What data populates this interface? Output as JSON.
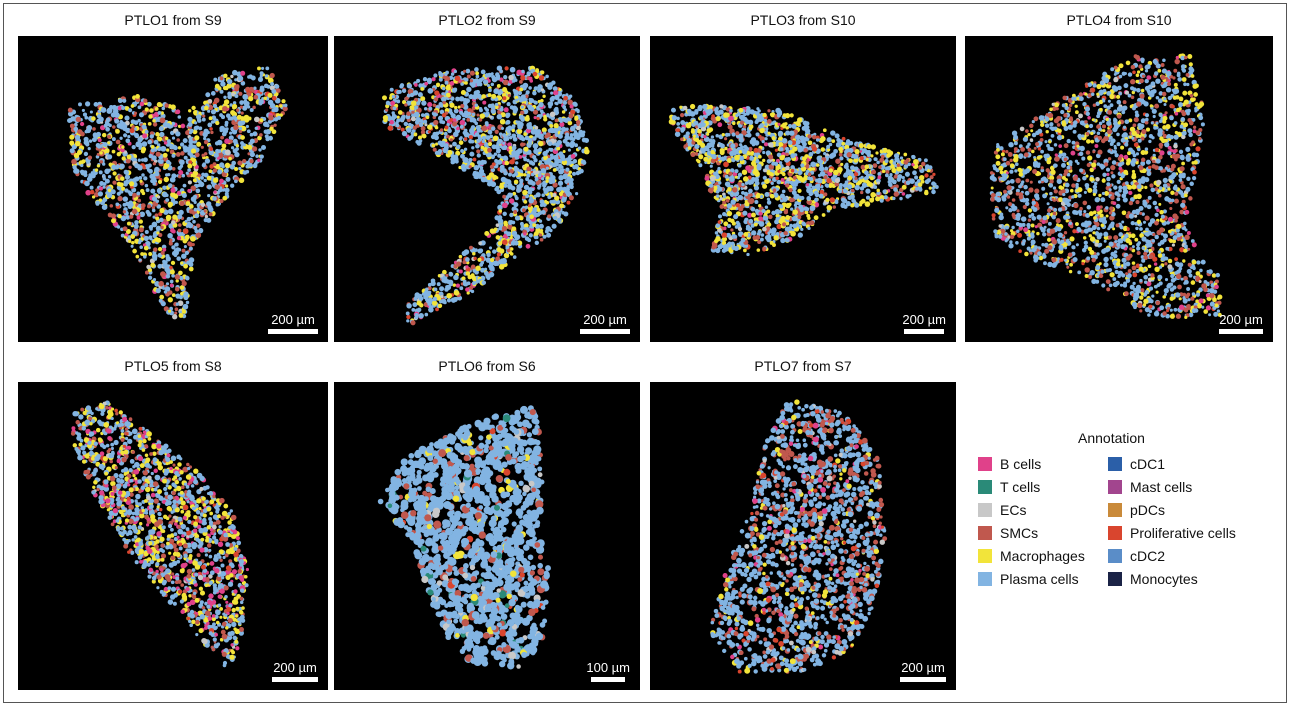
{
  "panels": [
    {
      "id": "ptlo1",
      "title": "PTLO1 from S9",
      "scale_label": "200 µm"
    },
    {
      "id": "ptlo2",
      "title": "PTLO2 from S9",
      "scale_label": "200 µm"
    },
    {
      "id": "ptlo3",
      "title": "PTLO3 from S10",
      "scale_label": "200 µm"
    },
    {
      "id": "ptlo4",
      "title": "PTLO4 from S10",
      "scale_label": "200 µm"
    },
    {
      "id": "ptlo5",
      "title": "PTLO5 from S8",
      "scale_label": "200 µm"
    },
    {
      "id": "ptlo6",
      "title": "PTLO6 from S6",
      "scale_label": "100 µm"
    },
    {
      "id": "ptlo7",
      "title": "PTLO7 from S7",
      "scale_label": "200 µm"
    }
  ],
  "legend": {
    "title": "Annotation",
    "items": [
      {
        "label": "B cells",
        "color": "#e0418a"
      },
      {
        "label": "T cells",
        "color": "#2a8a78"
      },
      {
        "label": "ECs",
        "color": "#c8c8c8"
      },
      {
        "label": "SMCs",
        "color": "#c0584e"
      },
      {
        "label": "Macrophages",
        "color": "#f2e43a"
      },
      {
        "label": "Plasma cells",
        "color": "#82b4e2"
      },
      {
        "label": "cDC1",
        "color": "#2b5fa8"
      },
      {
        "label": "Mast cells",
        "color": "#a2458e"
      },
      {
        "label": "pDCs",
        "color": "#c98a3a"
      },
      {
        "label": "Proliferative cells",
        "color": "#d9452e"
      },
      {
        "label": "cDC2",
        "color": "#5a8dc8"
      },
      {
        "label": "Monocytes",
        "color": "#1b2346"
      }
    ]
  }
}
